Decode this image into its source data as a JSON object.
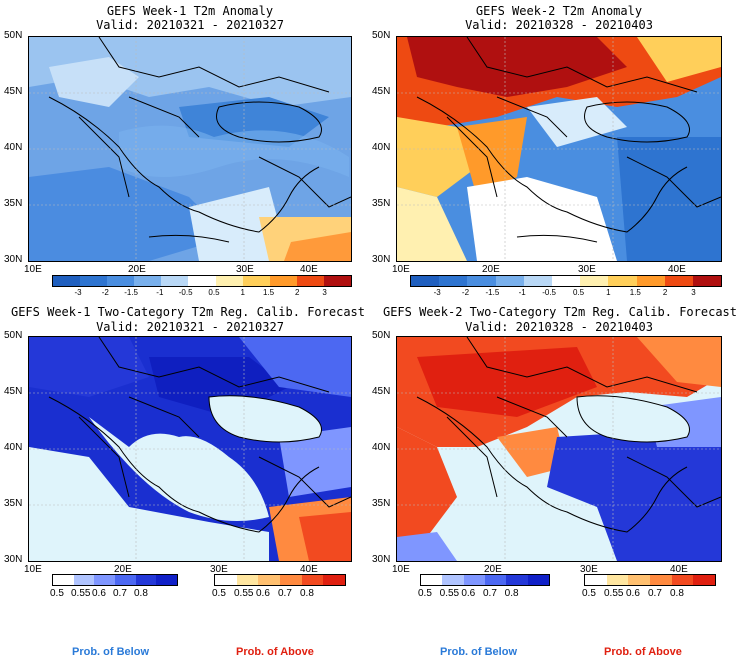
{
  "panels": [
    {
      "title": "GEFS Week-1 T2m Anomaly",
      "valid": "Valid: 20210321 - 20210327"
    },
    {
      "title": "GEFS Week-2 T2m Anomaly",
      "valid": "Valid: 20210328 - 20210403"
    },
    {
      "title": "GEFS Week-1 Two-Category T2m Reg. Calib. Forecast",
      "valid": "Valid: 20210321 - 20210327"
    },
    {
      "title": "GEFS Week-2 Two-Category T2m Reg. Calib. Forecast",
      "valid": "Valid: 20210328 - 20210403"
    }
  ],
  "lat_labels": [
    "50N",
    "45N",
    "40N",
    "35N",
    "30N"
  ],
  "lon_labels": [
    "10E",
    "20E",
    "30E",
    "40E"
  ],
  "anomaly_scale": {
    "labels": [
      "-3",
      "-2",
      "-1.5",
      "-1",
      "-0.5",
      "0.5",
      "1",
      "1.5",
      "2",
      "3"
    ],
    "colors": [
      "#1f5fbf",
      "#2e74d0",
      "#4a8ee0",
      "#79b0ec",
      "#b9d8f6",
      "#ffffff",
      "#fff0b0",
      "#ffcf5a",
      "#ff9a2a",
      "#ee4a12",
      "#b01010"
    ]
  },
  "prob_below_scale": {
    "labels": [
      "0.5",
      "0.55",
      "0.6",
      "0.7",
      "0.8"
    ],
    "colors": [
      "#ffffff",
      "#b0c4ff",
      "#7f96ff",
      "#4c68f2",
      "#2438d8",
      "#1020c8"
    ]
  },
  "prob_above_scale": {
    "labels": [
      "0.5",
      "0.55",
      "0.6",
      "0.7",
      "0.8"
    ],
    "colors": [
      "#ffffff",
      "#ffe6a0",
      "#ffc070",
      "#ff8a40",
      "#f24a20",
      "#e02010"
    ]
  },
  "footer": {
    "below": "Prob. of Below",
    "above": "Prob. of Above",
    "below_color": "#2a7ad8",
    "above_color": "#e02010"
  }
}
